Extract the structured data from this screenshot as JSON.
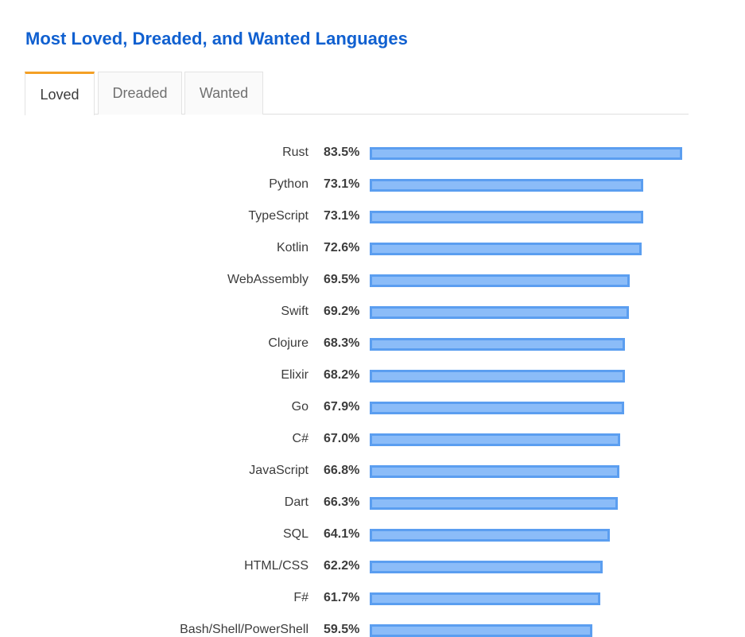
{
  "title": "Most Loved, Dreaded, and Wanted Languages",
  "tabs": [
    {
      "label": "Loved",
      "active": true
    },
    {
      "label": "Dreaded",
      "active": false
    },
    {
      "label": "Wanted",
      "active": false
    }
  ],
  "colors": {
    "title": "#1060d0",
    "active_tab_accent": "#f4a025",
    "bar_fill": "#8bbcf8",
    "bar_border": "#5b9ef0"
  },
  "chart_data": {
    "type": "bar",
    "orientation": "horizontal",
    "title": "",
    "xlabel": "",
    "ylabel": "",
    "xlim": [
      0,
      100
    ],
    "unit": "%",
    "grid": false,
    "categories": [
      "Rust",
      "Python",
      "TypeScript",
      "Kotlin",
      "WebAssembly",
      "Swift",
      "Clojure",
      "Elixir",
      "Go",
      "C#",
      "JavaScript",
      "Dart",
      "SQL",
      "HTML/CSS",
      "F#",
      "Bash/Shell/PowerShell"
    ],
    "values": [
      83.5,
      73.1,
      73.1,
      72.6,
      69.5,
      69.2,
      68.3,
      68.2,
      67.9,
      67.0,
      66.8,
      66.3,
      64.1,
      62.2,
      61.7,
      59.5
    ],
    "labels": [
      "83.5%",
      "73.1%",
      "73.1%",
      "72.6%",
      "69.5%",
      "69.2%",
      "68.3%",
      "68.2%",
      "67.9%",
      "67.0%",
      "66.8%",
      "66.3%",
      "64.1%",
      "62.2%",
      "61.7%",
      "59.5%"
    ]
  }
}
